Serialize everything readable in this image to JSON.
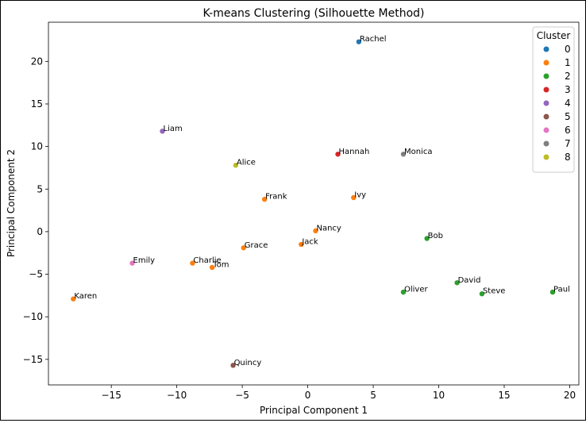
{
  "chart_data": {
    "type": "scatter",
    "title": "K-means Clustering (Silhouette Method)",
    "xlabel": "Principal Component 1",
    "ylabel": "Principal Component 2",
    "xlim": [
      -19.8,
      20.7
    ],
    "ylim": [
      -18.0,
      24.6
    ],
    "xticks": [
      -15,
      -10,
      -5,
      0,
      5,
      10,
      15,
      20
    ],
    "yticks": [
      -15,
      -10,
      -5,
      0,
      5,
      10,
      15,
      20
    ],
    "xtick_labels": [
      "−15",
      "−10",
      "−5",
      "0",
      "5",
      "10",
      "15",
      "20"
    ],
    "ytick_labels": [
      "−15",
      "−10",
      "−5",
      "0",
      "5",
      "10",
      "15",
      "20"
    ],
    "grid": false,
    "legend": {
      "title": "Cluster",
      "placement": "top-right",
      "entries": [
        {
          "label": "0",
          "color": "#1f77b4"
        },
        {
          "label": "1",
          "color": "#ff7f0e"
        },
        {
          "label": "2",
          "color": "#2ca02c"
        },
        {
          "label": "3",
          "color": "#d62728"
        },
        {
          "label": "4",
          "color": "#9467bd"
        },
        {
          "label": "5",
          "color": "#8c564b"
        },
        {
          "label": "6",
          "color": "#e377c2"
        },
        {
          "label": "7",
          "color": "#7f7f7f"
        },
        {
          "label": "8",
          "color": "#bcbd22"
        }
      ]
    },
    "points": [
      {
        "name": "Rachel",
        "x": 3.9,
        "y": 22.3,
        "cluster": 0
      },
      {
        "name": "Liam",
        "x": -11.1,
        "y": 11.8,
        "cluster": 4
      },
      {
        "name": "Hannah",
        "x": 2.3,
        "y": 9.1,
        "cluster": 3
      },
      {
        "name": "Monica",
        "x": 7.3,
        "y": 9.1,
        "cluster": 7
      },
      {
        "name": "Alice",
        "x": -5.5,
        "y": 7.8,
        "cluster": 8
      },
      {
        "name": "Frank",
        "x": -3.3,
        "y": 3.8,
        "cluster": 1
      },
      {
        "name": "Ivy",
        "x": 3.5,
        "y": 4.0,
        "cluster": 1
      },
      {
        "name": "Nancy",
        "x": 0.6,
        "y": 0.1,
        "cluster": 1
      },
      {
        "name": "Bob",
        "x": 9.1,
        "y": -0.8,
        "cluster": 2
      },
      {
        "name": "Jack",
        "x": -0.5,
        "y": -1.5,
        "cluster": 1
      },
      {
        "name": "Grace",
        "x": -4.9,
        "y": -1.9,
        "cluster": 1
      },
      {
        "name": "Emily",
        "x": -13.4,
        "y": -3.7,
        "cluster": 6
      },
      {
        "name": "Charlie",
        "x": -8.8,
        "y": -3.7,
        "cluster": 1
      },
      {
        "name": "Tom",
        "x": -7.3,
        "y": -4.2,
        "cluster": 1
      },
      {
        "name": "David",
        "x": 11.4,
        "y": -6.0,
        "cluster": 2
      },
      {
        "name": "Oliver",
        "x": 7.3,
        "y": -7.1,
        "cluster": 2
      },
      {
        "name": "Steve",
        "x": 13.3,
        "y": -7.3,
        "cluster": 2
      },
      {
        "name": "Paul",
        "x": 18.7,
        "y": -7.1,
        "cluster": 2
      },
      {
        "name": "Karen",
        "x": -17.9,
        "y": -7.9,
        "cluster": 1
      },
      {
        "name": "Quincy",
        "x": -5.7,
        "y": -15.7,
        "cluster": 5
      }
    ]
  }
}
